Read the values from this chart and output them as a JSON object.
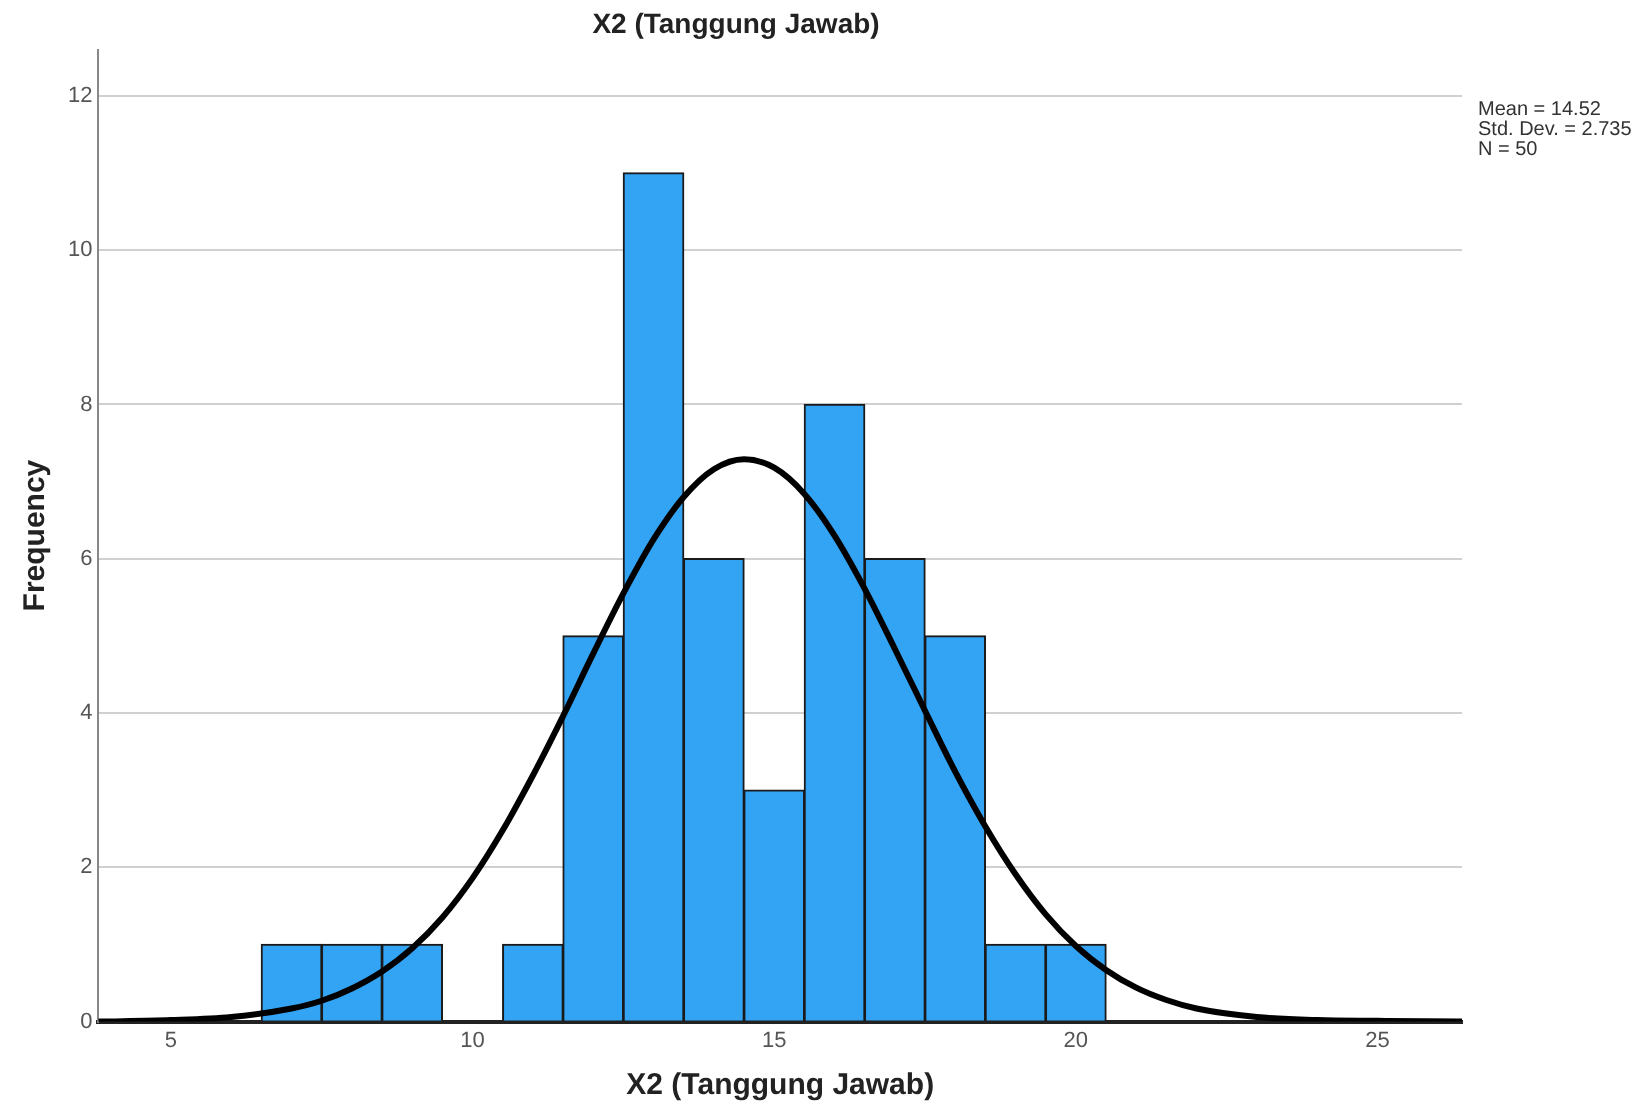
{
  "chart_data": {
    "type": "histogram",
    "title": "X2 (Tanggung Jawab)",
    "xlabel": "X2 (Tanggung Jawab)",
    "ylabel": "Frequency",
    "bins": [
      6.5,
      7.5,
      8.5,
      9.5,
      10.5,
      11.5,
      12.5,
      13.5,
      14.5,
      15.5,
      16.5,
      17.5,
      18.5,
      19.5,
      20.5
    ],
    "values": [
      1,
      1,
      1,
      0,
      1,
      5,
      11,
      6,
      3,
      8,
      6,
      5,
      1,
      1
    ],
    "color": "#33a3f4",
    "series": [
      {
        "type": "line",
        "color": "#000000",
        "x": [
          3.8,
          5,
          6,
          7,
          7.5,
          8,
          8.5,
          9,
          9.5,
          10,
          10.5,
          11,
          11.5,
          12,
          12.5,
          13,
          13.5,
          14,
          14.5,
          15,
          15.5,
          16,
          16.5,
          17,
          17.5,
          18,
          18.5,
          19,
          19.5,
          20,
          20.5,
          21,
          21.5,
          22,
          23,
          24,
          25,
          26.4
        ],
        "values": [
          0,
          0.02,
          0.06,
          0.17,
          0.27,
          0.43,
          0.65,
          0.95,
          1.35,
          1.86,
          2.48,
          3.19,
          3.96,
          4.77,
          5.55,
          6.25,
          6.8,
          7.16,
          7.29,
          7.18,
          6.84,
          6.3,
          5.61,
          4.83,
          4.03,
          3.24,
          2.53,
          1.91,
          1.39,
          0.98,
          0.67,
          0.44,
          0.28,
          0.17,
          0.06,
          0.02,
          0.01,
          0
        ]
      }
    ],
    "xlim": [
      3.8,
      26.4
    ],
    "xticks": [
      5,
      10,
      15,
      20,
      25
    ],
    "ylim": [
      0,
      12.6
    ],
    "yticks": [
      0,
      2,
      4,
      6,
      8,
      10,
      12
    ],
    "grid": "y",
    "annotations": [
      "Mean = 14.52",
      "Std. Dev. = 2.735",
      "N = 50"
    ]
  }
}
